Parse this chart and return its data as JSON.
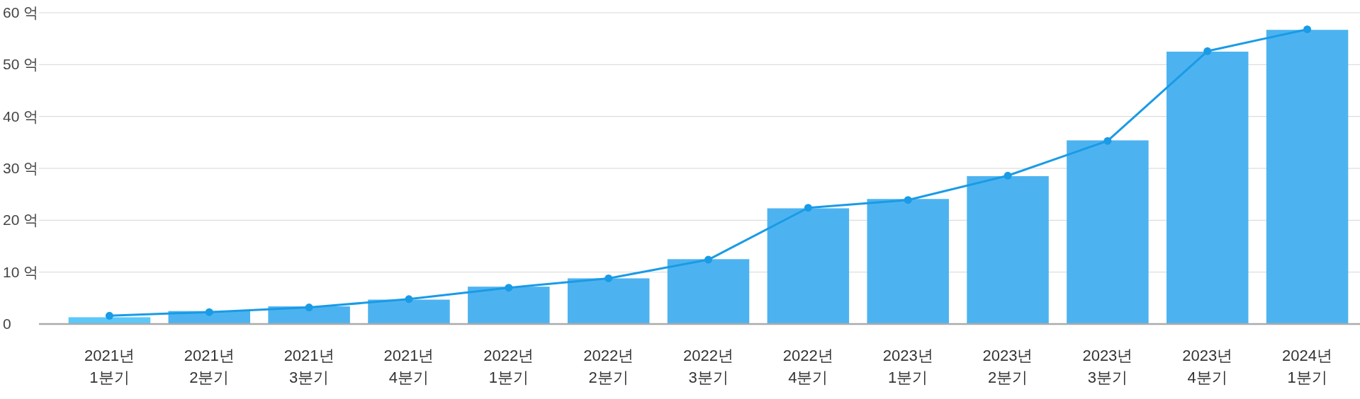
{
  "chart_data": {
    "type": "bar",
    "categories": [
      "2021년 1분기",
      "2021년 2분기",
      "2021년 3분기",
      "2021년 4분기",
      "2022년 1분기",
      "2022년 2분기",
      "2022년 3분기",
      "2022년 4분기",
      "2023년 1분기",
      "2023년 2분기",
      "2023년 3분기",
      "2023년 4분기",
      "2024년 1분기"
    ],
    "series": [
      {
        "colors": [
          "#5ac8fa",
          "#4db3f0",
          "#4db3f0",
          "#4db3f0",
          "#4db3f0",
          "#4db3f0",
          "#4db3f0",
          "#4db3f0",
          "#4db3f0",
          "#4db3f0",
          "#4db3f0",
          "#4db3f0",
          "#4db3f0"
        ],
        "values": [
          1.3,
          2.5,
          3.4,
          4.7,
          7.2,
          8.8,
          12.5,
          22.3,
          24.1,
          28.5,
          35.4,
          52.5,
          56.7
        ]
      },
      {
        "type": "line",
        "color": "#1a9be6",
        "marker": "circle",
        "values": [
          1.6,
          2.3,
          3.2,
          4.8,
          7.0,
          8.8,
          12.4,
          22.4,
          23.9,
          28.6,
          35.3,
          52.6,
          56.8
        ]
      }
    ],
    "ylim": [
      0,
      60
    ],
    "yticks": [
      0,
      {
        "value": 10,
        "label": "10 억"
      },
      {
        "value": 20,
        "label": "20 억"
      },
      {
        "value": 30,
        "label": "30 억"
      },
      {
        "value": 40,
        "label": "40 억"
      },
      {
        "value": 50,
        "label": "50 억"
      },
      {
        "value": 60,
        "label": "60 억"
      }
    ],
    "grid": "y"
  }
}
